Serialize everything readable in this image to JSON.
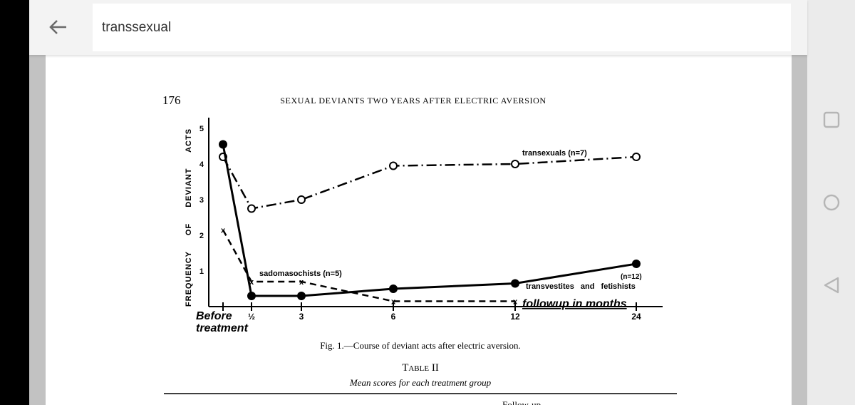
{
  "header": {
    "back_icon": "arrow-left-icon",
    "search_value": "transsexual"
  },
  "navbar": {
    "icons": [
      "square-recents-icon",
      "circle-home-icon",
      "triangle-back-icon"
    ]
  },
  "document": {
    "page_number": "176",
    "running_title": "SEXUAL DEVIANTS TWO YEARS AFTER ELECTRIC AVERSION",
    "figure_caption": "Fig. 1.—Course of deviant acts after electric aversion.",
    "table_title": "Table II",
    "table_subtitle": "Mean scores for each treatment group",
    "table_header_partial": "Follow-up"
  },
  "chart_data": {
    "type": "line",
    "ylabel": "FREQUENCY OF DEVIANT ACTS",
    "xlabel": "followup in months",
    "categories": [
      "Before treatment",
      "½",
      "3",
      "6",
      "12",
      "24"
    ],
    "category_lines": [
      [
        "Before",
        "treatment"
      ],
      [
        "½"
      ],
      [
        "3"
      ],
      [
        "6"
      ],
      [
        "12"
      ],
      [
        "24"
      ]
    ],
    "yticks": [
      "1",
      "2",
      "3",
      "4",
      "5"
    ],
    "ylim": [
      0,
      5
    ],
    "grid": false,
    "series": [
      {
        "name": "transexuals (n=7)",
        "marker": "open-circle",
        "line": "dash-dot",
        "values": [
          4.2,
          2.75,
          3.0,
          3.95,
          4.0,
          4.2
        ]
      },
      {
        "name": "transvestites and fetishists",
        "n_label": "(n=12)",
        "marker": "filled-circle",
        "line": "solid",
        "values": [
          4.55,
          0.3,
          0.3,
          0.5,
          0.65,
          1.2
        ]
      },
      {
        "name": "sadomasochists (n=5)",
        "marker": "x",
        "line": "dashed",
        "values": [
          2.15,
          0.7,
          0.7,
          0.15,
          0.15,
          null
        ]
      }
    ]
  }
}
